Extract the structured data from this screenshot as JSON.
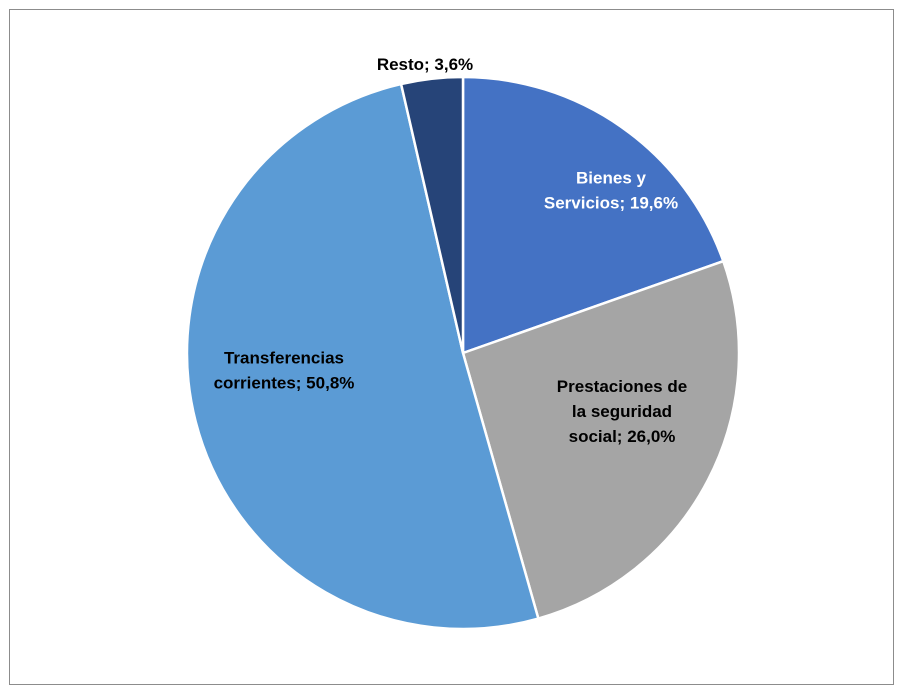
{
  "chart_data": {
    "type": "pie",
    "title": "",
    "slices": [
      {
        "label": "Bienes y Servicios",
        "value": 19.6,
        "display": [
          "Bienes y",
          "Servicios; 19,6%"
        ],
        "color": "#4472C4",
        "text_color": "#FFFFFF"
      },
      {
        "label": "Prestaciones de la seguridad social",
        "value": 26.0,
        "display": [
          "Prestaciones de",
          "la seguridad",
          "social; 26,0%"
        ],
        "color": "#A5A5A5",
        "text_color": "#000000"
      },
      {
        "label": "Transferencias corrientes",
        "value": 50.8,
        "display": [
          "Transferencias",
          "corrientes; 50,8%"
        ],
        "color": "#5B9BD5",
        "text_color": "#000000"
      },
      {
        "label": "Resto",
        "value": 3.6,
        "display": [
          "Resto; 3,6%"
        ],
        "color": "#264478",
        "text_color": "#000000"
      }
    ],
    "start_angle_deg": 0,
    "direction": "clockwise",
    "legend": "none"
  }
}
